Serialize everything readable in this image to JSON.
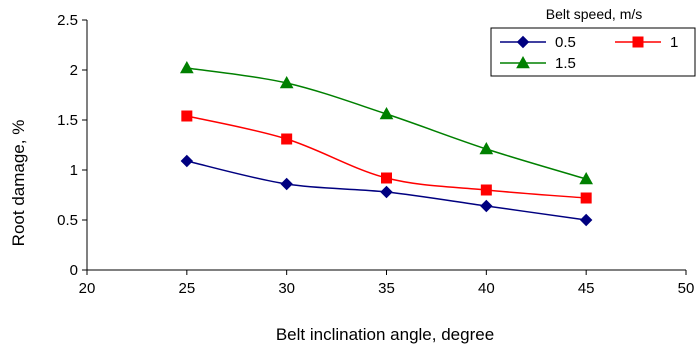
{
  "chart_data": {
    "type": "line",
    "xlabel": "Belt inclination angle, degree",
    "ylabel": "Root damage, %",
    "xlim": [
      20,
      50
    ],
    "ylim": [
      0,
      2.5
    ],
    "x_ticks": [
      20,
      25,
      30,
      35,
      40,
      45,
      50
    ],
    "y_ticks": [
      0,
      0.5,
      1,
      1.5,
      2,
      2.5
    ],
    "x_tick_labels": [
      "20",
      "25",
      "30",
      "35",
      "40",
      "45",
      "50"
    ],
    "y_tick_labels": [
      "0",
      "0.5",
      "1",
      "1.5",
      "2",
      "2.5"
    ],
    "grid": false,
    "smooth": true,
    "legend": {
      "title": "Belt speed, m/s",
      "placement": "top-right"
    },
    "x": [
      25,
      30,
      35,
      40,
      45
    ],
    "series": [
      {
        "name": "0.5",
        "values": [
          1.09,
          0.86,
          0.78,
          0.64,
          0.5
        ],
        "color": "#000080",
        "marker": "diamond"
      },
      {
        "name": "1",
        "values": [
          1.54,
          1.31,
          0.92,
          0.8,
          0.72
        ],
        "color": "#ff0000",
        "marker": "square"
      },
      {
        "name": "1.5",
        "values": [
          2.02,
          1.87,
          1.56,
          1.21,
          0.91
        ],
        "color": "#008000",
        "marker": "triangle"
      }
    ]
  }
}
